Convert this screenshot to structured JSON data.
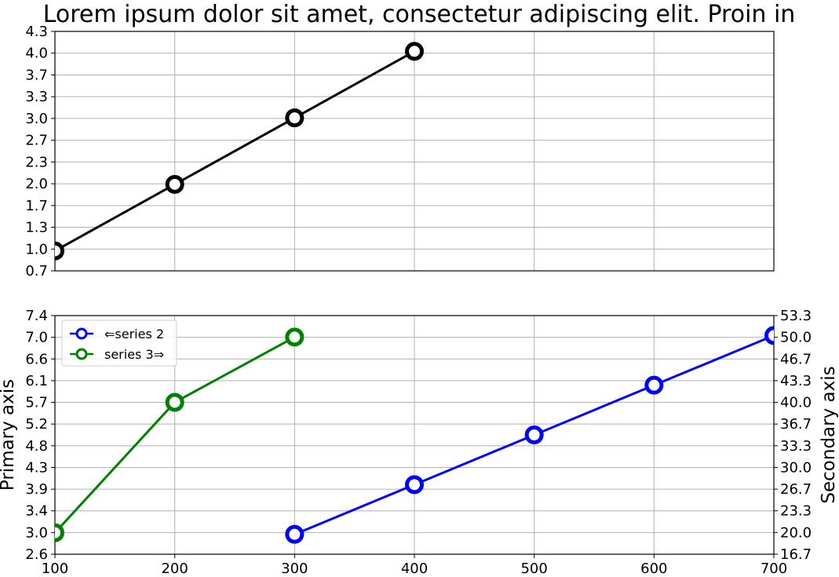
{
  "chart_data": {
    "title": "Lorem ipsum dolor sit amet, consectetur adipiscing elit. Proin in",
    "x_tick_labels": [
      "100",
      "200",
      "300",
      "400",
      "500",
      "600",
      "700"
    ],
    "panels": [
      {
        "type": "line",
        "xlim": [
          100,
          700
        ],
        "ylim": [
          0.7,
          4.3
        ],
        "grid": true,
        "y_tick_labels": [
          "0.7",
          "1.0",
          "1.3",
          "1.7",
          "2.0",
          "2.3",
          "2.7",
          "3.0",
          "3.3",
          "3.7",
          "4.0",
          "4.3"
        ],
        "ylabel": "",
        "series": [
          {
            "x": [
              100,
              200,
              300,
              400
            ],
            "y": [
              1.0,
              2.0,
              3.0,
              4.0
            ],
            "color": "#000000",
            "marker": "open-circle"
          }
        ]
      },
      {
        "type": "line",
        "xlim": [
          100,
          700
        ],
        "ylim": [
          2.6,
          7.4
        ],
        "y2lim": [
          16.7,
          53.3
        ],
        "grid": true,
        "ylabel": "Primary axis",
        "y2label": "Secondary axis",
        "y_tick_labels": [
          "2.6",
          "3.0",
          "3.4",
          "3.9",
          "4.3",
          "4.8",
          "5.2",
          "5.7",
          "6.1",
          "6.6",
          "7.0",
          "7.4"
        ],
        "y2_tick_labels": [
          "16.7",
          "20.0",
          "23.3",
          "26.7",
          "30.0",
          "33.3",
          "36.7",
          "40.0",
          "43.3",
          "46.7",
          "50.0",
          "53.3"
        ],
        "legend_position": "top-left",
        "series": [
          {
            "name": "⇐series 2",
            "axis": "primary",
            "x": [
              300,
              400,
              500,
              600,
              700
            ],
            "y": [
              3.0,
              4.0,
              5.0,
              6.0,
              7.0
            ],
            "color": "#0000ff",
            "marker": "open-circle"
          },
          {
            "name": "series 3⇒",
            "axis": "secondary",
            "x": [
              100,
              200,
              300
            ],
            "y": [
              20.0,
              40.0,
              50.0
            ],
            "color": "#008000",
            "marker": "open-circle"
          }
        ]
      }
    ]
  }
}
